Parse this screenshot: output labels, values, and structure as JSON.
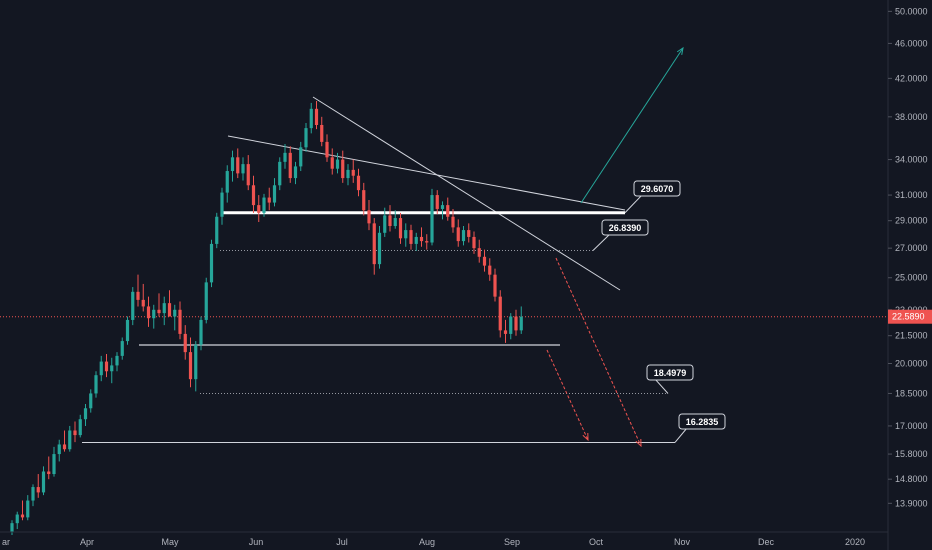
{
  "chart_data": {
    "type": "candlestick",
    "y_scale": "log",
    "ylim": [
      12.9,
      51.5
    ],
    "y_ticks": [
      "50.0000",
      "46.0000",
      "42.0000",
      "38.0000",
      "34.0000",
      "31.0000",
      "29.0000",
      "27.0000",
      "25.0000",
      "23.0000",
      "21.5000",
      "20.0000",
      "18.5000",
      "17.0000",
      "15.8000",
      "14.8000",
      "13.9000"
    ],
    "x_ticks": [
      "Apr",
      "May",
      "Jun",
      "Jul",
      "Aug",
      "Sep",
      "Oct",
      "Nov",
      "Dec",
      "2020"
    ],
    "current_price": "22.5890",
    "levels": [
      {
        "label": "29.6070",
        "value": 29.607
      },
      {
        "label": "26.8390",
        "value": 26.839
      },
      {
        "label": "18.4979",
        "value": 18.4979
      },
      {
        "label": "16.2835",
        "value": 16.2835
      }
    ],
    "candles": [
      [
        12.9,
        13.3,
        12.8,
        13.2
      ],
      [
        13.2,
        13.6,
        13.0,
        13.5
      ],
      [
        13.5,
        14.0,
        13.3,
        13.4
      ],
      [
        13.4,
        14.2,
        13.3,
        14.0
      ],
      [
        14.0,
        14.6,
        13.8,
        14.5
      ],
      [
        14.5,
        15.0,
        14.1,
        14.3
      ],
      [
        14.3,
        15.3,
        14.2,
        15.1
      ],
      [
        15.1,
        15.7,
        14.8,
        15.0
      ],
      [
        15.0,
        16.1,
        14.9,
        15.8
      ],
      [
        15.8,
        16.4,
        15.5,
        16.2
      ],
      [
        16.2,
        16.8,
        15.9,
        16.0
      ],
      [
        16.0,
        17.0,
        15.9,
        16.8
      ],
      [
        16.8,
        17.2,
        16.3,
        16.6
      ],
      [
        16.6,
        17.5,
        16.5,
        17.3
      ],
      [
        17.3,
        18.0,
        17.0,
        17.8
      ],
      [
        17.8,
        18.7,
        17.6,
        18.5
      ],
      [
        18.5,
        19.6,
        18.3,
        19.4
      ],
      [
        19.4,
        20.4,
        19.1,
        20.1
      ],
      [
        20.1,
        20.5,
        19.3,
        19.6
      ],
      [
        19.6,
        20.3,
        19.0,
        19.9
      ],
      [
        19.9,
        20.6,
        19.6,
        20.4
      ],
      [
        20.4,
        21.4,
        20.2,
        21.2
      ],
      [
        21.2,
        22.6,
        21.0,
        22.4
      ],
      [
        22.4,
        24.4,
        22.1,
        24.1
      ],
      [
        24.1,
        25.2,
        23.2,
        23.6
      ],
      [
        23.6,
        24.6,
        22.9,
        23.2
      ],
      [
        23.2,
        23.8,
        22.0,
        22.5
      ],
      [
        22.5,
        23.3,
        21.9,
        23.0
      ],
      [
        23.0,
        24.0,
        22.6,
        22.8
      ],
      [
        22.8,
        23.8,
        22.1,
        23.4
      ],
      [
        23.4,
        24.2,
        22.8,
        22.6
      ],
      [
        22.6,
        23.3,
        21.8,
        23.0
      ],
      [
        23.0,
        23.5,
        21.3,
        21.6
      ],
      [
        21.6,
        22.1,
        20.2,
        20.6
      ],
      [
        20.6,
        21.4,
        18.8,
        19.2
      ],
      [
        19.2,
        21.2,
        18.6,
        21.0
      ],
      [
        21.0,
        22.6,
        20.7,
        22.4
      ],
      [
        22.4,
        25.0,
        22.2,
        24.7
      ],
      [
        24.7,
        27.6,
        24.4,
        27.3
      ],
      [
        27.3,
        29.6,
        27.0,
        29.3
      ],
      [
        29.3,
        31.6,
        28.7,
        31.2
      ],
      [
        31.2,
        33.5,
        30.4,
        33.0
      ],
      [
        33.0,
        34.8,
        32.1,
        34.2
      ],
      [
        34.2,
        35.0,
        32.4,
        32.8
      ],
      [
        32.8,
        34.2,
        32.2,
        33.6
      ],
      [
        33.6,
        34.4,
        31.4,
        31.8
      ],
      [
        31.8,
        32.6,
        29.6,
        30.2
      ],
      [
        30.2,
        31.0,
        28.9,
        29.6
      ],
      [
        29.6,
        31.1,
        29.3,
        30.8
      ],
      [
        30.8,
        31.6,
        29.8,
        30.4
      ],
      [
        30.4,
        32.4,
        30.1,
        31.8
      ],
      [
        31.8,
        34.2,
        31.4,
        33.8
      ],
      [
        33.8,
        35.4,
        33.2,
        34.6
      ],
      [
        34.6,
        35.2,
        32.0,
        32.4
      ],
      [
        32.4,
        33.8,
        31.9,
        33.4
      ],
      [
        33.4,
        35.6,
        33.0,
        35.1
      ],
      [
        35.1,
        37.4,
        34.7,
        36.9
      ],
      [
        36.9,
        39.4,
        36.4,
        38.8
      ],
      [
        38.8,
        39.6,
        36.8,
        37.2
      ],
      [
        37.2,
        38.0,
        35.2,
        35.6
      ],
      [
        35.6,
        36.3,
        33.8,
        34.2
      ],
      [
        34.2,
        35.0,
        32.7,
        33.2
      ],
      [
        33.2,
        34.6,
        32.8,
        34.0
      ],
      [
        34.0,
        34.8,
        32.0,
        32.4
      ],
      [
        32.4,
        33.6,
        31.8,
        33.1
      ],
      [
        33.1,
        34.0,
        32.0,
        32.6
      ],
      [
        32.6,
        33.2,
        30.9,
        31.4
      ],
      [
        31.4,
        32.0,
        29.4,
        29.8
      ],
      [
        29.8,
        30.6,
        28.3,
        28.8
      ],
      [
        28.8,
        29.2,
        25.2,
        25.9
      ],
      [
        25.9,
        28.6,
        25.6,
        28.1
      ],
      [
        28.1,
        30.0,
        27.8,
        29.4
      ],
      [
        29.4,
        30.2,
        28.2,
        28.6
      ],
      [
        28.6,
        29.8,
        28.4,
        29.2
      ],
      [
        29.2,
        29.6,
        27.3,
        27.7
      ],
      [
        27.7,
        28.8,
        27.1,
        28.3
      ],
      [
        28.3,
        28.7,
        26.9,
        27.3
      ],
      [
        27.3,
        28.1,
        26.8,
        27.8
      ],
      [
        27.8,
        28.5,
        27.1,
        27.5
      ],
      [
        27.5,
        28.0,
        26.9,
        27.4
      ],
      [
        27.4,
        31.5,
        27.2,
        31.0
      ],
      [
        31.0,
        31.4,
        29.5,
        29.9
      ],
      [
        29.9,
        30.5,
        29.1,
        30.2
      ],
      [
        30.2,
        30.8,
        29.0,
        29.3
      ],
      [
        29.3,
        29.9,
        28.1,
        28.5
      ],
      [
        28.5,
        29.1,
        27.1,
        27.5
      ],
      [
        27.5,
        28.6,
        27.2,
        28.3
      ],
      [
        28.3,
        28.8,
        27.4,
        27.8
      ],
      [
        27.8,
        28.2,
        26.6,
        27.0
      ],
      [
        27.0,
        27.6,
        26.0,
        26.4
      ],
      [
        26.4,
        26.9,
        25.4,
        25.8
      ],
      [
        25.8,
        26.3,
        24.8,
        25.2
      ],
      [
        25.2,
        25.6,
        23.5,
        23.8
      ],
      [
        23.8,
        24.2,
        21.4,
        21.8
      ],
      [
        21.8,
        22.4,
        21.1,
        21.6
      ],
      [
        21.6,
        22.8,
        21.3,
        22.6
      ],
      [
        22.6,
        23.0,
        21.5,
        21.8
      ],
      [
        21.8,
        23.2,
        21.6,
        22.59
      ]
    ]
  }
}
